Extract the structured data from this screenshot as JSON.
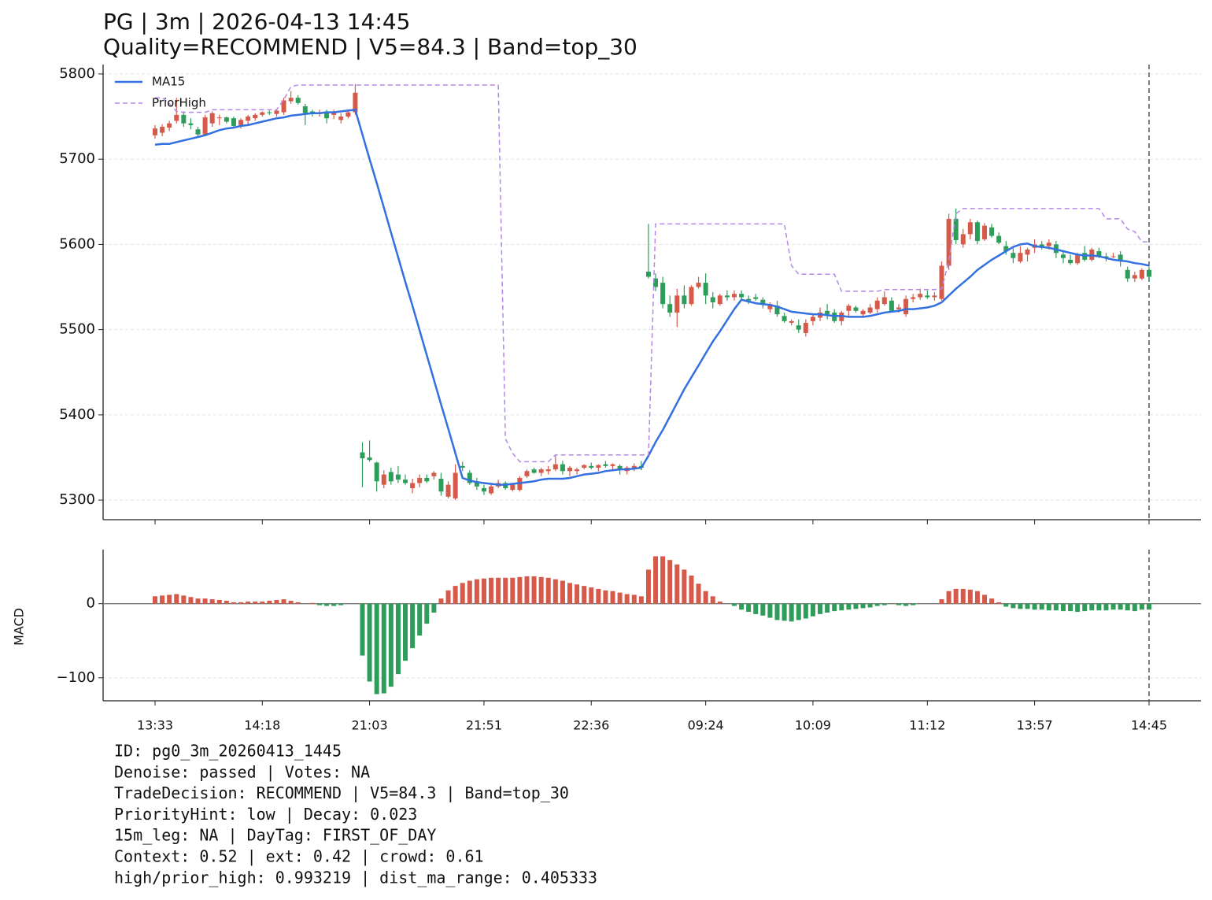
{
  "chart_data": [
    {
      "type": "candlestick",
      "title": "PG | 3m | 2026-04-13 14:45",
      "subtitle": "Quality=RECOMMEND | V5=84.3 | Band=top_30",
      "open": [
        5728,
        5731,
        5737,
        5745,
        5752,
        5742,
        5735,
        5729,
        5742,
        5748,
        5749,
        5748,
        5740,
        5745,
        5748,
        5752,
        5755,
        5753,
        5755,
        5768,
        5772,
        5762,
        5756,
        5753,
        5756,
        5752,
        5746,
        5750,
        5755,
        5356,
        5350,
        5344,
        5318,
        5333,
        5330,
        5324,
        5314,
        5320,
        5326,
        5328,
        5325,
        5304,
        5302,
        5340,
        5332,
        5322,
        5314,
        5308,
        5316,
        5320,
        5312,
        5312,
        5328,
        5336,
        5332,
        5334,
        5336,
        5342,
        5334,
        5334,
        5338,
        5340,
        5338,
        5342,
        5340,
        5340,
        5334,
        5338,
        5340,
        5568,
        5560,
        5555,
        5530,
        5520,
        5540,
        5530,
        5550,
        5555,
        5538,
        5530,
        5540,
        5538,
        5542,
        5536,
        5538,
        5535,
        5524,
        5528,
        5516,
        5508,
        5505,
        5496,
        5510,
        5514,
        5522,
        5520,
        5510,
        5522,
        5526,
        5518,
        5520,
        5524,
        5530,
        5534,
        5524,
        5518,
        5536,
        5538,
        5540,
        5538,
        5536,
        5575,
        5630,
        5600,
        5612,
        5626,
        5606,
        5620,
        5610,
        5598,
        5590,
        5580,
        5588,
        5596,
        5600,
        5598,
        5600,
        5588,
        5582,
        5578,
        5590,
        5582,
        5592,
        5586,
        5586,
        5588,
        5570,
        5560,
        5560,
        5570
      ],
      "high": [
        5740,
        5741,
        5745,
        5772,
        5756,
        5748,
        5738,
        5752,
        5756,
        5752,
        5750,
        5750,
        5748,
        5752,
        5754,
        5756,
        5757,
        5758,
        5772,
        5780,
        5775,
        5765,
        5758,
        5758,
        5758,
        5758,
        5754,
        5757,
        5788,
        5368,
        5370,
        5345,
        5335,
        5338,
        5340,
        5330,
        5325,
        5330,
        5330,
        5334,
        5332,
        5322,
        5342,
        5345,
        5335,
        5326,
        5318,
        5320,
        5324,
        5322,
        5320,
        5328,
        5336,
        5338,
        5338,
        5340,
        5352,
        5346,
        5340,
        5338,
        5342,
        5344,
        5342,
        5346,
        5343,
        5342,
        5340,
        5343,
        5346,
        5624,
        5566,
        5562,
        5540,
        5548,
        5552,
        5552,
        5562,
        5566,
        5544,
        5542,
        5546,
        5546,
        5546,
        5540,
        5542,
        5538,
        5532,
        5534,
        5520,
        5512,
        5512,
        5512,
        5518,
        5526,
        5530,
        5524,
        5522,
        5530,
        5528,
        5524,
        5530,
        5538,
        5545,
        5538,
        5530,
        5540,
        5542,
        5548,
        5546,
        5544,
        5580,
        5636,
        5642,
        5618,
        5630,
        5628,
        5625,
        5624,
        5614,
        5604,
        5596,
        5598,
        5596,
        5606,
        5604,
        5606,
        5604,
        5592,
        5588,
        5590,
        5598,
        5596,
        5596,
        5590,
        5590,
        5592,
        5574,
        5568,
        5572,
        5574
      ],
      "low": [
        5724,
        5727,
        5733,
        5742,
        5738,
        5735,
        5727,
        5727,
        5738,
        5740,
        5742,
        5738,
        5736,
        5740,
        5745,
        5750,
        5752,
        5750,
        5752,
        5765,
        5764,
        5740,
        5750,
        5750,
        5742,
        5747,
        5742,
        5748,
        5752,
        5315,
        5345,
        5310,
        5314,
        5318,
        5320,
        5318,
        5308,
        5315,
        5320,
        5324,
        5305,
        5302,
        5300,
        5334,
        5318,
        5312,
        5306,
        5306,
        5314,
        5312,
        5310,
        5310,
        5326,
        5331,
        5328,
        5330,
        5334,
        5330,
        5328,
        5330,
        5336,
        5336,
        5334,
        5338,
        5336,
        5330,
        5330,
        5334,
        5335,
        5560,
        5545,
        5525,
        5515,
        5503,
        5525,
        5528,
        5548,
        5530,
        5525,
        5528,
        5534,
        5534,
        5536,
        5530,
        5534,
        5525,
        5520,
        5515,
        5508,
        5505,
        5496,
        5492,
        5505,
        5510,
        5512,
        5508,
        5505,
        5516,
        5520,
        5514,
        5518,
        5520,
        5528,
        5520,
        5520,
        5515,
        5532,
        5535,
        5536,
        5534,
        5534,
        5570,
        5600,
        5596,
        5606,
        5600,
        5604,
        5608,
        5600,
        5588,
        5578,
        5578,
        5580,
        5590,
        5594,
        5594,
        5584,
        5578,
        5576,
        5576,
        5580,
        5580,
        5584,
        5580,
        5584,
        5574,
        5556,
        5556,
        5558,
        5556
      ],
      "close": [
        5736,
        5738,
        5742,
        5752,
        5742,
        5740,
        5729,
        5749,
        5754,
        5749,
        5744,
        5739,
        5746,
        5750,
        5752,
        5755,
        5754,
        5757,
        5769,
        5772,
        5766,
        5754,
        5754,
        5755,
        5748,
        5755,
        5750,
        5755,
        5778,
        5349,
        5347,
        5322,
        5330,
        5322,
        5324,
        5320,
        5320,
        5326,
        5322,
        5332,
        5310,
        5318,
        5332,
        5338,
        5320,
        5316,
        5310,
        5316,
        5320,
        5314,
        5318,
        5326,
        5334,
        5332,
        5336,
        5336,
        5342,
        5334,
        5338,
        5336,
        5341,
        5338,
        5341,
        5340,
        5342,
        5336,
        5338,
        5340,
        5338,
        5562,
        5550,
        5530,
        5520,
        5540,
        5530,
        5550,
        5555,
        5540,
        5532,
        5540,
        5538,
        5542,
        5538,
        5534,
        5536,
        5530,
        5530,
        5518,
        5510,
        5510,
        5500,
        5508,
        5515,
        5520,
        5518,
        5510,
        5520,
        5528,
        5522,
        5522,
        5526,
        5534,
        5538,
        5522,
        5526,
        5536,
        5538,
        5542,
        5538,
        5540,
        5575,
        5630,
        5605,
        5612,
        5626,
        5604,
        5622,
        5610,
        5602,
        5592,
        5584,
        5590,
        5594,
        5600,
        5596,
        5602,
        5590,
        5584,
        5578,
        5588,
        5582,
        5594,
        5586,
        5584,
        5586,
        5580,
        5560,
        5564,
        5570,
        5562
      ],
      "up_color": "#d65a4a",
      "down_color": "#2e9d5a",
      "series": [
        {
          "name": "MA15",
          "color": "#3370e0",
          "dash": false,
          "values": [
            5717,
            5718,
            5718,
            5720,
            5722,
            5724,
            5726,
            5728,
            5731,
            5734,
            5736,
            5737,
            5739,
            5740,
            5742,
            5744,
            5746,
            5748,
            5749,
            5751,
            5752,
            5753,
            5754,
            5754,
            5755,
            5755,
            5756,
            5757,
            5758,
            5729,
            5700,
            5672,
            5643,
            5614,
            5585,
            5556,
            5528,
            5499,
            5470,
            5441,
            5412,
            5384,
            5355,
            5326,
            5323,
            5321,
            5320,
            5319,
            5318,
            5318,
            5319,
            5320,
            5321,
            5322,
            5324,
            5325,
            5325,
            5325,
            5326,
            5328,
            5330,
            5331,
            5332,
            5334,
            5335,
            5336,
            5336,
            5337,
            5338,
            5352,
            5368,
            5382,
            5398,
            5414,
            5430,
            5444,
            5458,
            5472,
            5486,
            5498,
            5511,
            5524,
            5535,
            5533,
            5531,
            5530,
            5529,
            5527,
            5524,
            5521,
            5520,
            5519,
            5518,
            5518,
            5517,
            5516,
            5516,
            5515,
            5515,
            5515,
            5516,
            5518,
            5520,
            5521,
            5522,
            5524,
            5524,
            5525,
            5526,
            5528,
            5532,
            5540,
            5548,
            5555,
            5562,
            5570,
            5576,
            5582,
            5587,
            5592,
            5597,
            5600,
            5601,
            5598,
            5597,
            5596,
            5594,
            5592,
            5590,
            5588,
            5587,
            5587,
            5586,
            5584,
            5582,
            5581,
            5580,
            5578,
            5577,
            5575
          ]
        },
        {
          "name": "PriorHigh",
          "color": "#b487e6",
          "dash": true,
          "values": [
            5772,
            5772,
            5765,
            5756,
            5755,
            5755,
            5755,
            5755,
            5758,
            5758,
            5758,
            5758,
            5758,
            5758,
            5758,
            5758,
            5758,
            5758,
            5770,
            5785,
            5787,
            5787,
            5787,
            5787,
            5787,
            5787,
            5787,
            5787,
            5787,
            5787,
            5787,
            5787,
            5787,
            5787,
            5787,
            5787,
            5787,
            5787,
            5787,
            5787,
            5787,
            5787,
            5787,
            5787,
            5787,
            5787,
            5787,
            5787,
            5787,
            5372,
            5355,
            5345,
            5345,
            5345,
            5345,
            5345,
            5353,
            5353,
            5353,
            5353,
            5353,
            5353,
            5353,
            5353,
            5353,
            5353,
            5353,
            5353,
            5353,
            5353,
            5624,
            5624,
            5624,
            5624,
            5624,
            5624,
            5624,
            5624,
            5624,
            5624,
            5624,
            5624,
            5624,
            5624,
            5624,
            5624,
            5624,
            5624,
            5624,
            5575,
            5565,
            5565,
            5565,
            5565,
            5565,
            5565,
            5545,
            5545,
            5545,
            5545,
            5545,
            5545,
            5547,
            5547,
            5547,
            5547,
            5547,
            5547,
            5547,
            5547,
            5548,
            5580,
            5636,
            5642,
            5642,
            5642,
            5642,
            5642,
            5642,
            5642,
            5642,
            5642,
            5642,
            5642,
            5642,
            5642,
            5642,
            5642,
            5642,
            5642,
            5642,
            5642,
            5642,
            5630,
            5630,
            5630,
            5618,
            5615,
            5603,
            5603
          ]
        }
      ],
      "ylim": [
        5277,
        5811
      ],
      "yticks": [
        5300,
        5400,
        5500,
        5600,
        5700,
        5800
      ],
      "grid": true,
      "legend": "upper left",
      "vline": 139
    },
    {
      "type": "bar",
      "ylabel": "MACD",
      "categories": [
        "13:33",
        null,
        null,
        null,
        null,
        null,
        null,
        null,
        null,
        null,
        null,
        null,
        null,
        null,
        null,
        "14:18",
        null,
        null,
        null,
        null,
        null,
        null,
        null,
        null,
        null,
        null,
        null,
        null,
        null,
        null,
        "21:03",
        null,
        null,
        null,
        null,
        null,
        null,
        null,
        null,
        null,
        null,
        null,
        null,
        null,
        null,
        null,
        "21:51",
        null,
        null,
        null,
        null,
        null,
        null,
        null,
        null,
        null,
        null,
        null,
        null,
        null,
        null,
        "22:36",
        null,
        null,
        null,
        null,
        null,
        null,
        null,
        null,
        null,
        null,
        null,
        null,
        null,
        null,
        null,
        "09:24",
        null,
        null,
        null,
        null,
        null,
        null,
        null,
        null,
        null,
        null,
        null,
        null,
        null,
        null,
        "10:09",
        null,
        null,
        null,
        null,
        null,
        null,
        null,
        null,
        null,
        null,
        null,
        null,
        null,
        null,
        null,
        "11:12",
        null,
        null,
        null,
        null,
        null,
        null,
        null,
        null,
        null,
        null,
        null,
        null,
        null,
        null,
        "13:57",
        null,
        null,
        null,
        null,
        null,
        null,
        null,
        null,
        null,
        null,
        null,
        null,
        null,
        null,
        null,
        "14:45"
      ],
      "values": [
        10,
        11,
        12,
        13,
        11,
        9,
        7,
        7,
        6,
        5,
        4,
        2,
        2,
        3,
        3,
        3,
        4,
        5,
        6,
        4,
        2,
        0,
        1,
        -2,
        -3,
        -3,
        -2,
        0,
        0,
        -70,
        -105,
        -122,
        -121,
        -112,
        -95,
        -77,
        -60,
        -43,
        -27,
        -12,
        7,
        18,
        24,
        28,
        31,
        33,
        34,
        35,
        35,
        35,
        35,
        36,
        37,
        37,
        36,
        35,
        33,
        31,
        28,
        26,
        24,
        22,
        20,
        18,
        17,
        15,
        13,
        12,
        10,
        46,
        64,
        64,
        59,
        53,
        46,
        38,
        27,
        17,
        10,
        3,
        0,
        -3,
        -8,
        -11,
        -14,
        -16,
        -19,
        -22,
        -23,
        -24,
        -22,
        -20,
        -17,
        -14,
        -12,
        -10,
        -9,
        -8,
        -7,
        -6,
        -5,
        -3,
        -2,
        0,
        -2,
        -3,
        -2,
        0,
        0,
        0,
        6,
        17,
        20,
        20,
        19,
        17,
        12,
        7,
        2,
        -4,
        -6,
        -7,
        -7,
        -8,
        -8,
        -9,
        -9,
        -10,
        -10,
        -11,
        -10,
        -9,
        -9,
        -9,
        -8,
        -8,
        -9,
        -10,
        -8,
        -8
      ],
      "up_color": "#d65a4a",
      "down_color": "#2e9d5a",
      "ylim": [
        -131,
        73
      ],
      "yticks": [
        {
          "value": -100,
          "label": "−100"
        },
        0
      ],
      "grid": true,
      "vline": 139
    }
  ],
  "footer_lines": [
    "ID: pg0_3m_20260413_1445",
    "Denoise: passed | Votes: NA",
    "TradeDecision: RECOMMEND | V5=84.3 | Band=top_30",
    "PriorityHint: low | Decay: 0.023",
    "15m_leg: NA | DayTag: FIRST_OF_DAY",
    "Context: 0.52 | ext: 0.42 | crowd: 0.61",
    "high/prior_high: 0.993219 | dist_ma_range: 0.405333"
  ]
}
